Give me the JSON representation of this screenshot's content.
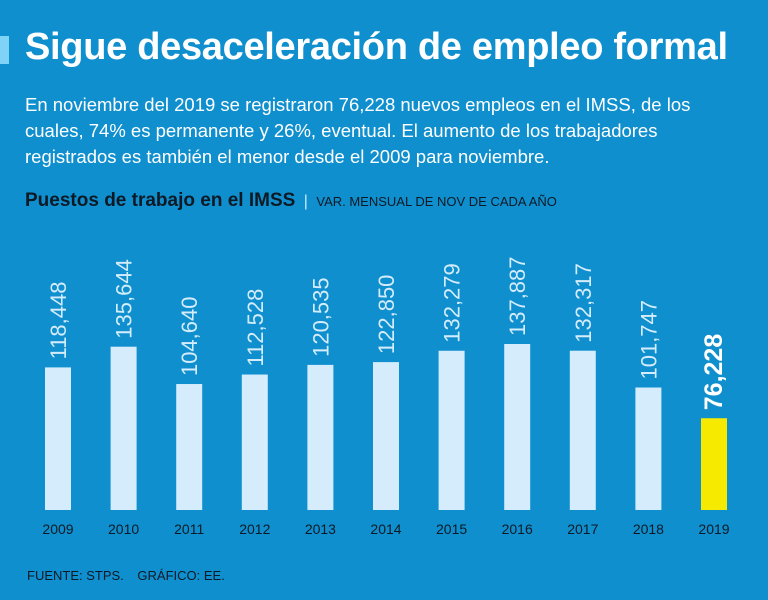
{
  "header": {
    "title": "Sigue desaceleración de empleo formal",
    "subtitle": "En noviembre del 2019 se registraron 76,228 nuevos empleos en el IMSS, de los cuales, 74% es permanente y 26%, eventual. El aumento de los trabajadores registrados es también el menor desde el 2009 para noviembre."
  },
  "chart_header": {
    "title": "Puestos de trabajo en el IMSS",
    "separator": "|",
    "unit": "VAR. MENSUAL DE NOV DE CADA AÑO"
  },
  "footer": {
    "source": "FUENTE: STPS.",
    "credit": "GRÁFICO: EE."
  },
  "colors": {
    "background": "#0f8fce",
    "bar": "#d4ecfb",
    "highlight_bar": "#f5ea00",
    "label": "#d4ecfb",
    "highlight_label": "#ffffff",
    "axis_label": "#0d1a26"
  },
  "chart_data": {
    "type": "bar",
    "title": "Puestos de trabajo en el IMSS",
    "ylabel": "",
    "xlabel": "",
    "categories": [
      "2009",
      "2010",
      "2011",
      "2012",
      "2013",
      "2014",
      "2015",
      "2016",
      "2017",
      "2018",
      "2019"
    ],
    "values": [
      118448,
      135644,
      104640,
      112528,
      120535,
      122850,
      132279,
      137887,
      132317,
      101747,
      76228
    ],
    "labels": [
      "118,448",
      "135,644",
      "104,640",
      "112,528",
      "120,535",
      "122,850",
      "132,279",
      "137,887",
      "132,317",
      "101,747",
      "76,228"
    ],
    "highlight_index": 10,
    "ylim": [
      0,
      137887
    ],
    "grid": false
  }
}
